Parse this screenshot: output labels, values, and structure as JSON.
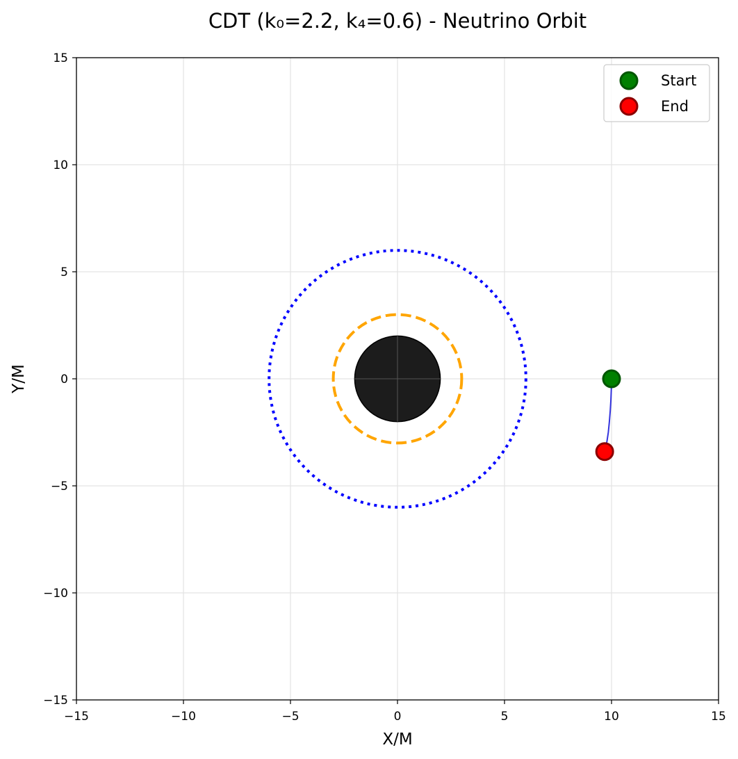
{
  "chart_data": {
    "type": "line",
    "title": "CDT (k₀=2.2, k₄=0.6) - Neutrino Orbit",
    "xlabel": "X/M",
    "ylabel": "Y/M",
    "xlim": [
      -15,
      15
    ],
    "ylim": [
      -15,
      15
    ],
    "xticks": [
      -15,
      -10,
      -5,
      0,
      5,
      10,
      15
    ],
    "yticks": [
      -15,
      -10,
      -5,
      0,
      5,
      10,
      15
    ],
    "grid": true,
    "legend_position": "top-right",
    "black_hole": {
      "radius": 2,
      "color": "#1c1c1c"
    },
    "photon_sphere": {
      "radius": 3,
      "color": "#ffa500",
      "style": "dashed"
    },
    "isco": {
      "radius": 6,
      "color": "#0000ff",
      "style": "dotted"
    },
    "series": [
      {
        "color": "#3333dd",
        "x": [
          10.0,
          9.99,
          9.97,
          9.94,
          9.9,
          9.85,
          9.79,
          9.73,
          9.68
        ],
        "y": [
          0.0,
          -0.5,
          -1.0,
          -1.5,
          -2.0,
          -2.5,
          -2.9,
          -3.2,
          -3.4
        ]
      }
    ],
    "markers": [
      {
        "name": "Start",
        "x": 10.0,
        "y": 0.0,
        "fill": "#008000",
        "edge": "#005500"
      },
      {
        "name": "End",
        "x": 9.68,
        "y": -3.4,
        "fill": "#ff0000",
        "edge": "#8b0000"
      }
    ]
  }
}
